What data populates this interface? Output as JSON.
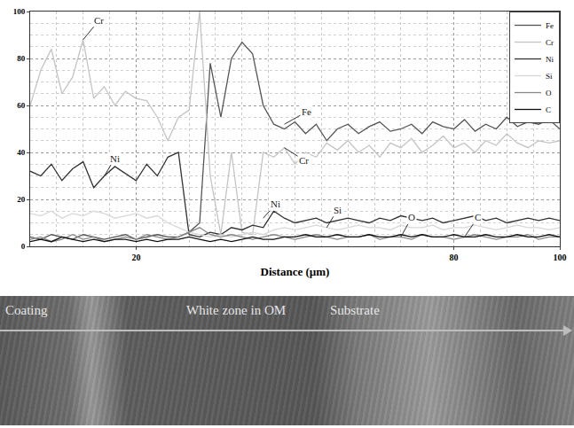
{
  "chart_data": {
    "type": "line",
    "x_label": "Distance (µm)",
    "xlim": [
      0,
      100
    ],
    "xticks": [
      20,
      80,
      100
    ],
    "ylim": [
      0,
      100
    ],
    "yticks": [
      0,
      20,
      40,
      60,
      80,
      100
    ],
    "grid": true,
    "legend": "top right",
    "x": [
      0,
      2,
      4,
      6,
      8,
      10,
      12,
      14,
      16,
      18,
      20,
      22,
      24,
      26,
      28,
      30,
      32,
      34,
      36,
      38,
      40,
      42,
      44,
      46,
      48,
      50,
      52,
      54,
      56,
      58,
      60,
      62,
      64,
      66,
      68,
      70,
      72,
      74,
      76,
      78,
      80,
      82,
      84,
      86,
      88,
      90,
      92,
      94,
      96,
      98,
      100
    ],
    "series": [
      {
        "name": "Fe",
        "color": "#555555",
        "values": [
          4,
          3,
          5,
          4,
          3,
          5,
          4,
          3,
          4,
          5,
          3,
          4,
          5,
          4,
          4,
          6,
          10,
          78,
          55,
          80,
          87,
          82,
          60,
          52,
          50,
          53,
          48,
          52,
          45,
          50,
          52,
          48,
          51,
          53,
          49,
          50,
          52,
          48,
          53,
          51,
          50,
          54,
          49,
          52,
          50,
          55,
          51,
          53,
          52,
          54,
          50
        ]
      },
      {
        "name": "Cr",
        "color": "#c4c4c4",
        "values": [
          60,
          75,
          84,
          65,
          72,
          88,
          63,
          68,
          60,
          66,
          63,
          62,
          55,
          45,
          55,
          58,
          100,
          30,
          5,
          40,
          6,
          5,
          40,
          38,
          42,
          35,
          40,
          38,
          44,
          41,
          45,
          40,
          43,
          38,
          44,
          42,
          46,
          40,
          43,
          47,
          42,
          44,
          40,
          45,
          43,
          48,
          44,
          42,
          45,
          44,
          45
        ]
      },
      {
        "name": "Ni",
        "color": "#333333",
        "values": [
          32,
          30,
          35,
          28,
          33,
          36,
          25,
          30,
          34,
          31,
          28,
          35,
          30,
          38,
          40,
          5,
          4,
          6,
          5,
          8,
          7,
          9,
          8,
          15,
          12,
          10,
          11,
          12,
          10,
          11,
          12,
          11,
          10,
          12,
          11,
          13,
          12,
          11,
          12,
          10,
          11,
          12,
          13,
          11,
          12,
          10,
          11,
          12,
          11,
          12,
          11
        ]
      },
      {
        "name": "Si",
        "color": "#d8d8d8",
        "values": [
          14,
          13,
          15,
          12,
          14,
          13,
          15,
          14,
          12,
          13,
          14,
          12,
          13,
          10,
          8,
          6,
          5,
          4,
          5,
          4,
          5,
          6,
          5,
          7,
          8,
          7,
          8,
          9,
          8,
          7,
          8,
          9,
          8,
          8,
          7,
          9,
          8,
          8,
          9,
          7,
          8,
          8,
          9,
          8,
          7,
          8,
          9,
          8,
          8,
          7,
          8
        ]
      },
      {
        "name": "O",
        "color": "#888888",
        "values": [
          3,
          4,
          2,
          3,
          5,
          3,
          4,
          2,
          3,
          4,
          3,
          5,
          4,
          3,
          4,
          6,
          8,
          5,
          4,
          5,
          4,
          3,
          4,
          5,
          4,
          3,
          4,
          5,
          4,
          3,
          4,
          4,
          5,
          3,
          4,
          4,
          3,
          5,
          4,
          4,
          3,
          4,
          5,
          4,
          3,
          4,
          4,
          5,
          3,
          4,
          4
        ]
      },
      {
        "name": "C",
        "color": "#111111",
        "values": [
          2,
          3,
          2,
          4,
          3,
          2,
          3,
          2,
          3,
          3,
          2,
          3,
          2,
          3,
          3,
          4,
          3,
          2,
          3,
          2,
          3,
          4,
          3,
          3,
          4,
          4,
          5,
          4,
          4,
          5,
          4,
          4,
          5,
          4,
          4,
          5,
          4,
          5,
          4,
          4,
          5,
          4,
          4,
          5,
          4,
          4,
          5,
          4,
          4,
          5,
          4
        ]
      }
    ],
    "annotations": [
      {
        "text": "Cr",
        "x": 10,
        "y": 88
      },
      {
        "text": "Ni",
        "x": 14,
        "y": 30
      },
      {
        "text": "Fe",
        "x": 48,
        "y": 52
      },
      {
        "text": "Cr",
        "x": 48,
        "y": 42
      },
      {
        "text": "Ni",
        "x": 44,
        "y": 12
      },
      {
        "text": "Si",
        "x": 56,
        "y": 8
      },
      {
        "text": "O",
        "x": 70,
        "y": 4
      },
      {
        "text": "C",
        "x": 82,
        "y": 4
      }
    ],
    "image_labels": [
      "Coating",
      "White zone in OM",
      "Substrate"
    ]
  }
}
